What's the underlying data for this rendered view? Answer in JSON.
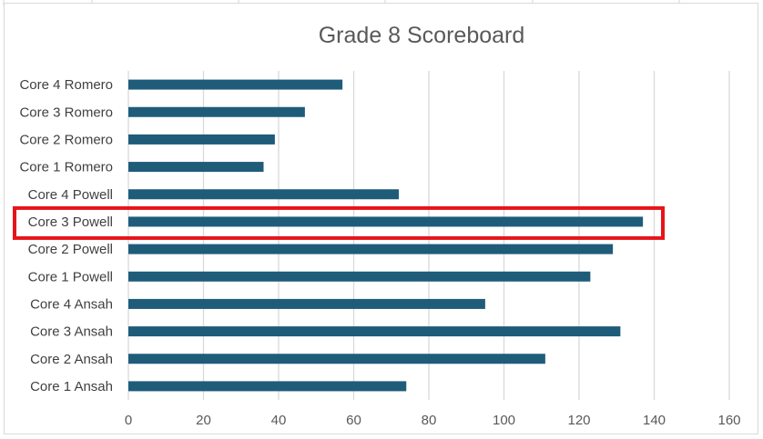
{
  "chart_data": {
    "type": "bar",
    "orientation": "horizontal",
    "title": "Grade 8 Scoreboard",
    "xlabel": "",
    "ylabel": "",
    "categories": [
      "Core 1 Ansah",
      "Core 2 Ansah",
      "Core 3 Ansah",
      "Core 4 Ansah",
      "Core 1 Powell",
      "Core 2 Powell",
      "Core 3 Powell",
      "Core 4 Powell",
      "Core 1 Romero",
      "Core 2 Romero",
      "Core 3 Romero",
      "Core 4 Romero"
    ],
    "values": [
      74,
      111,
      131,
      95,
      123,
      129,
      137,
      72,
      36,
      39,
      47,
      57
    ],
    "xlim": [
      0,
      160
    ],
    "xticks": [
      0,
      20,
      40,
      60,
      80,
      100,
      120,
      140,
      160
    ],
    "grid": "vertical",
    "legend": "none",
    "bar_color": "#1f5c7a",
    "highlighted_category": "Core 3 Powell",
    "highlight_color": "#e8141a"
  }
}
